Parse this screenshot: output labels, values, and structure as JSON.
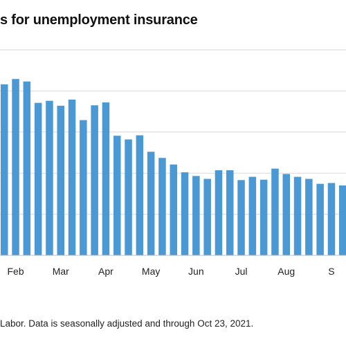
{
  "chart_data": {
    "type": "bar",
    "title": "s for unemployment insurance",
    "source": "Labor. Data is seasonally adjusted and through Oct 23, 2021.",
    "xlabel": "",
    "ylabel": "",
    "ylim": [
      0,
      5
    ],
    "y_gridlines": [
      1,
      2,
      3,
      4,
      5
    ],
    "grid": true,
    "bar_color": "#4a98d4",
    "month_ticks": [
      {
        "label": "Feb",
        "index": 1
      },
      {
        "label": "Mar",
        "index": 5
      },
      {
        "label": "Apr",
        "index": 9
      },
      {
        "label": "May",
        "index": 13
      },
      {
        "label": "Jun",
        "index": 17
      },
      {
        "label": "Jul",
        "index": 21
      },
      {
        "label": "Aug",
        "index": 25
      },
      {
        "label": "S",
        "index": 29
      }
    ],
    "values": [
      4.16,
      4.29,
      4.23,
      3.71,
      3.76,
      3.64,
      3.79,
      3.29,
      3.65,
      3.72,
      2.91,
      2.82,
      2.92,
      2.52,
      2.37,
      2.21,
      2.02,
      1.93,
      1.86,
      2.07,
      2.07,
      1.83,
      1.91,
      1.84,
      2.11,
      1.98,
      1.91,
      1.86,
      1.74,
      1.76,
      1.7,
      1.6
    ]
  }
}
